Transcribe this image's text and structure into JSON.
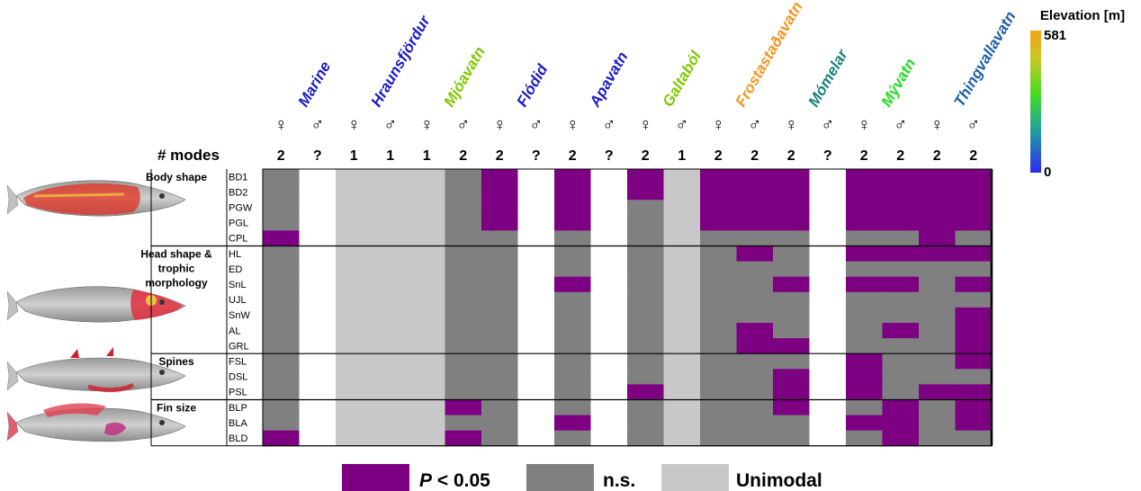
{
  "chart_data": {
    "type": "heatmap",
    "populations": [
      {
        "name": "Marine",
        "color": "#1a1ac8"
      },
      {
        "name": "Hraunsfjördur",
        "color": "#1a1ac8"
      },
      {
        "name": "Mjóavatn",
        "color": "#7ec800"
      },
      {
        "name": "Flódid",
        "color": "#1a1ac8"
      },
      {
        "name": "Apavatn",
        "color": "#1a1ac8"
      },
      {
        "name": "Galtaból",
        "color": "#7ec800"
      },
      {
        "name": "Frostastaðavatn",
        "color": "#f7931e"
      },
      {
        "name": "Mómelar",
        "color": "#1a8080"
      },
      {
        "name": "Mývatn",
        "color": "#22dd22"
      },
      {
        "name": "Thingvallavatn",
        "color": "#1f5fa8"
      }
    ],
    "sexes": [
      "♀",
      "♂",
      "♀",
      "♂",
      "♀",
      "♂",
      "♀",
      "♂",
      "♀",
      "♂",
      "♀",
      "♂",
      "♀",
      "♂",
      "♀",
      "♂",
      "♀",
      "♂",
      "♀",
      "♂"
    ],
    "modes_label": "# modes",
    "modes": [
      "2",
      "?",
      "1",
      "1",
      "1",
      "2",
      "2",
      "?",
      "2",
      "?",
      "2",
      "1",
      "2",
      "2",
      "2",
      "?",
      "2",
      "2",
      "2",
      "2"
    ],
    "traits": [
      "BD1",
      "BD2",
      "PGW",
      "PGL",
      "CPL",
      "HL",
      "ED",
      "SnL",
      "UJL",
      "SnW",
      "AL",
      "GRL",
      "FSL",
      "DSL",
      "PSL",
      "BLP",
      "BLA",
      "BLD"
    ],
    "groups": [
      {
        "label": "Body shape",
        "from": 0,
        "to": 4
      },
      {
        "label": "Head shape &\ntrophic\nmorphology",
        "from": 5,
        "to": 11
      },
      {
        "label": "Spines",
        "from": 12,
        "to": 14
      },
      {
        "label": "Fin size",
        "from": 15,
        "to": 17
      }
    ],
    "cell_codes": {
      "P": "P < 0.05",
      "N": "n.s.",
      "U": "Unimodal",
      "W": "no data"
    },
    "cells": [
      "NWUUUNPWPWPUPPPWPPPP",
      "NWUUUNPWPWPUPPPWPPPP",
      "NWUUUNPWPWNUPPPWPPPP",
      "NWUUUNPWPWNUPPPWPPPP",
      "PWUUUNNWNWNUNNNWNNPN",
      "NWUUUNNWNWNUNPNWPPPP",
      "NWUUUNNWNWNUNNNWNNNN",
      "NWUUUNNWPWNUNNPWPPNP",
      "NWUUUNNWNWNUNNNWNNNN",
      "NWUUUNNWNWNUNNNWNNNP",
      "NWUUUNNWNWNUNPNWNPNP",
      "NWUUUNNWNWNUNPPWNNNP",
      "NWUUUNNWNWNUNNNWPNNP",
      "NWUUUNNWNWNUNNPWPNNN",
      "NWUUUNNWNWPUNNPWPNPP",
      "NWUUUPNWNWNUNNPWNPNP",
      "NWUUUNNWPWNUNNNWPPNP",
      "PWUUUPNWNWNUNNNWNPNN"
    ],
    "colors": {
      "P": "#7d0083",
      "N": "#808080",
      "U": "#c8c8c8",
      "W": "#ffffff"
    },
    "legend": [
      {
        "code": "P",
        "label": "P < 0.05"
      },
      {
        "code": "N",
        "label": "n.s."
      },
      {
        "code": "U",
        "label": "Unimodal"
      }
    ],
    "colorbar": {
      "title": "Elevation [m]",
      "max": "581",
      "min": "0",
      "colors": [
        "#2b2bf0",
        "#23c8a0",
        "#44dd22",
        "#c8c820",
        "#f2a51a"
      ]
    }
  }
}
